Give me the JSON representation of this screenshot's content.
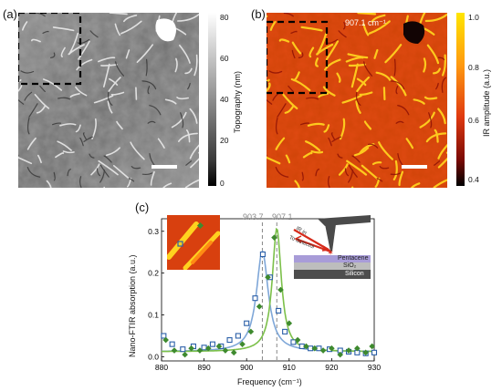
{
  "figure": {
    "panel_a": {
      "label": "(a)",
      "colorbar": {
        "title": "Topography (nm)",
        "ticks": [
          "80",
          "60",
          "40",
          "20",
          "0"
        ]
      }
    },
    "panel_b": {
      "label": "(b)",
      "annotation": "907.1 cm⁻¹",
      "colorbar": {
        "title": "IR amplitude (a.u.)",
        "ticks": [
          "1.0",
          "0.8",
          "0.6",
          "0.4"
        ]
      }
    },
    "panel_c": {
      "label": "(c)",
      "marker_labels": [
        "903.7",
        "907.1"
      ],
      "schematic": {
        "ir_in": "IR in",
        "to_detector": "To detector",
        "layer_top": "Pentacene",
        "layer_mid": "SiO₂",
        "layer_bottom": "Silicon"
      }
    }
  },
  "chart_data": {
    "type": "scatter",
    "xlabel": "Frequency (cm⁻¹)",
    "ylabel": "Nano-FTIR absorption (a.u.)",
    "xlim": [
      880,
      930
    ],
    "ylim": [
      -0.01,
      0.33
    ],
    "xticks": [
      880,
      890,
      900,
      910,
      920,
      930
    ],
    "yticks": [
      0.0,
      0.1,
      0.2,
      0.3
    ],
    "vlines": [
      903.7,
      907.1
    ],
    "colors": {
      "blue": "#2b5fa8",
      "blue_fit": "#7fa7d8",
      "green": "#3e8a2e",
      "green_fit": "#7cc04a"
    },
    "series": [
      {
        "marker": "open-square",
        "color": "#2b5fa8",
        "points": [
          [
            880.5,
            0.05
          ],
          [
            882.5,
            0.03
          ],
          [
            885,
            0.018
          ],
          [
            887.5,
            0.025
          ],
          [
            890,
            0.022
          ],
          [
            892,
            0.03
          ],
          [
            894,
            0.025
          ],
          [
            896,
            0.04
          ],
          [
            898,
            0.05
          ],
          [
            900,
            0.08
          ],
          [
            902,
            0.14
          ],
          [
            903.8,
            0.245
          ],
          [
            905.5,
            0.19
          ],
          [
            907.5,
            0.11
          ],
          [
            909,
            0.06
          ],
          [
            911,
            0.035
          ],
          [
            913,
            0.025
          ],
          [
            915,
            0.02
          ],
          [
            917,
            0.02
          ],
          [
            919.5,
            0.018
          ],
          [
            922,
            0.015
          ],
          [
            924,
            0.012
          ],
          [
            926,
            0.01
          ],
          [
            928,
            0.008
          ],
          [
            930,
            0.01
          ]
        ]
      },
      {
        "marker": "filled-diamond",
        "color": "#3e8a2e",
        "points": [
          [
            881,
            0.04
          ],
          [
            883,
            0.015
          ],
          [
            885.5,
            0.005
          ],
          [
            887,
            0.02
          ],
          [
            889,
            0.015
          ],
          [
            891,
            0.02
          ],
          [
            893.5,
            0.025
          ],
          [
            895,
            0.015
          ],
          [
            897,
            0.01
          ],
          [
            899,
            0.03
          ],
          [
            901,
            0.06
          ],
          [
            903,
            0.12
          ],
          [
            905,
            0.19
          ],
          [
            906.5,
            0.285
          ],
          [
            908,
            0.16
          ],
          [
            910,
            0.08
          ],
          [
            912,
            0.04
          ],
          [
            914,
            0.025
          ],
          [
            916,
            0.02
          ],
          [
            918,
            0.015
          ],
          [
            920,
            0.02
          ],
          [
            922,
            0.005
          ],
          [
            924,
            0.015
          ],
          [
            926,
            0.02
          ],
          [
            928,
            0.01
          ],
          [
            929.5,
            0.025
          ]
        ]
      },
      {
        "kind": "fit",
        "color": "#7fa7d8",
        "center": 903.7,
        "gamma": 1.7,
        "amplitude": 0.24
      },
      {
        "kind": "fit",
        "color": "#7cc04a",
        "center": 907.1,
        "gamma": 1.3,
        "amplitude": 0.295
      }
    ]
  }
}
